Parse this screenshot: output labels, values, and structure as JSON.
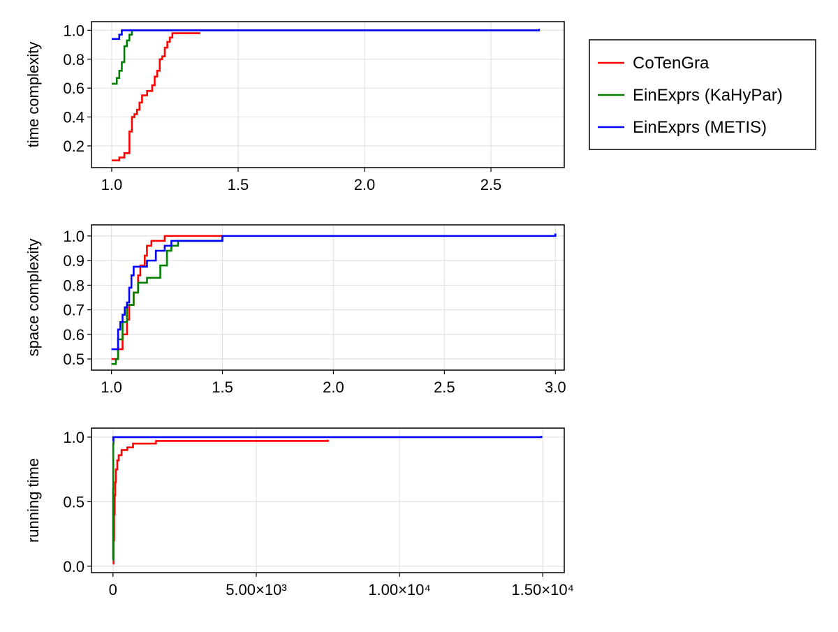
{
  "colors": {
    "CoTenGra": "#ff0000",
    "EinExprs (KaHyPar)": "#008000",
    "EinExprs (METIS)": "#0000ff"
  },
  "legend": {
    "placement": "right-top",
    "entries": [
      "CoTenGra",
      "EinExprs (KaHyPar)",
      "EinExprs (METIS)"
    ]
  },
  "chart_data": [
    {
      "type": "line",
      "step": true,
      "ylabel": "time complexity",
      "xlim": [
        0.92,
        2.79
      ],
      "ylim": [
        0.05,
        1.06
      ],
      "xticks": [
        1.0,
        1.5,
        2.0,
        2.5
      ],
      "xtick_labels": [
        "1.0",
        "1.5",
        "2.0",
        "2.5"
      ],
      "yticks": [
        0.2,
        0.4,
        0.6,
        0.8,
        1.0
      ],
      "ytick_labels": [
        "0.2",
        "0.4",
        "0.6",
        "0.8",
        "1.0"
      ],
      "grid": true,
      "series": [
        {
          "name": "CoTenGra",
          "x": [
            1.0,
            1.03,
            1.05,
            1.07,
            1.08,
            1.09,
            1.1,
            1.11,
            1.12,
            1.14,
            1.16,
            1.17,
            1.18,
            1.19,
            1.2,
            1.21,
            1.22,
            1.23,
            1.24,
            1.26,
            1.35
          ],
          "y": [
            0.1,
            0.12,
            0.15,
            0.3,
            0.4,
            0.42,
            0.45,
            0.5,
            0.55,
            0.58,
            0.62,
            0.68,
            0.72,
            0.8,
            0.82,
            0.88,
            0.92,
            0.95,
            0.98,
            0.98,
            0.98
          ]
        },
        {
          "name": "EinExprs (KaHyPar)",
          "x": [
            1.0,
            1.02,
            1.03,
            1.04,
            1.05,
            1.06,
            1.07,
            1.08
          ],
          "y": [
            0.63,
            0.67,
            0.72,
            0.78,
            0.89,
            0.93,
            0.97,
            1.0
          ]
        },
        {
          "name": "EinExprs (METIS)",
          "x": [
            1.0,
            1.03,
            1.04,
            1.05,
            2.69
          ],
          "y": [
            0.94,
            0.97,
            1.0,
            1.0,
            1.01
          ]
        }
      ]
    },
    {
      "type": "line",
      "step": true,
      "ylabel": "space complexity",
      "xlim": [
        0.91,
        3.04
      ],
      "ylim": [
        0.455,
        1.045
      ],
      "xticks": [
        1.0,
        1.5,
        2.0,
        2.5,
        3.0
      ],
      "xtick_labels": [
        "1.0",
        "1.5",
        "2.0",
        "2.5",
        "3.0"
      ],
      "yticks": [
        0.5,
        0.6,
        0.7,
        0.8,
        0.9,
        1.0
      ],
      "ytick_labels": [
        "0.5",
        "0.6",
        "0.7",
        "0.8",
        "0.9",
        "1.0"
      ],
      "grid": true,
      "series": [
        {
          "name": "CoTenGra",
          "x": [
            1.0,
            1.03,
            1.05,
            1.07,
            1.08,
            1.1,
            1.12,
            1.13,
            1.15,
            1.16,
            1.18,
            1.24,
            1.5
          ],
          "y": [
            0.5,
            0.54,
            0.6,
            0.66,
            0.72,
            0.77,
            0.84,
            0.88,
            0.92,
            0.96,
            0.98,
            1.0,
            1.0
          ]
        },
        {
          "name": "EinExprs (KaHyPar)",
          "x": [
            1.0,
            1.02,
            1.03,
            1.05,
            1.07,
            1.1,
            1.12,
            1.16,
            1.22,
            1.25,
            1.27,
            1.3,
            1.5
          ],
          "y": [
            0.48,
            0.5,
            0.58,
            0.65,
            0.72,
            0.77,
            0.81,
            0.83,
            0.88,
            0.94,
            0.96,
            0.98,
            1.0
          ]
        },
        {
          "name": "EinExprs (METIS)",
          "x": [
            1.0,
            1.03,
            1.04,
            1.05,
            1.06,
            1.07,
            1.08,
            1.09,
            1.1,
            1.12,
            1.16,
            1.2,
            1.22,
            1.24,
            1.27,
            1.5,
            3.0
          ],
          "y": [
            0.54,
            0.62,
            0.65,
            0.68,
            0.71,
            0.73,
            0.79,
            0.84,
            0.875,
            0.875,
            0.9,
            0.94,
            0.94,
            0.96,
            0.98,
            1.0,
            1.01
          ]
        }
      ]
    },
    {
      "type": "line",
      "step": true,
      "ylabel": "running time",
      "xlim": [
        -750,
        15750
      ],
      "ylim": [
        -0.05,
        1.07
      ],
      "xticks": [
        0,
        5000,
        10000,
        15000
      ],
      "xtick_labels": [
        "0",
        "5.00×10³",
        "1.00×10⁴",
        "1.50×10⁴"
      ],
      "yticks": [
        0.0,
        0.5,
        1.0
      ],
      "ytick_labels": [
        "0.0",
        "0.5",
        "1.0"
      ],
      "grid": true,
      "series": [
        {
          "name": "CoTenGra",
          "x": [
            0,
            20,
            40,
            60,
            80,
            100,
            150,
            200,
            300,
            500,
            700,
            1500,
            7500
          ],
          "y": [
            0.02,
            0.2,
            0.4,
            0.55,
            0.65,
            0.75,
            0.82,
            0.86,
            0.9,
            0.92,
            0.95,
            0.97,
            0.98
          ]
        },
        {
          "name": "EinExprs (KaHyPar)",
          "x": [
            0,
            5,
            10,
            20
          ],
          "y": [
            0.05,
            0.6,
            0.95,
            1.0
          ]
        },
        {
          "name": "EinExprs (METIS)",
          "x": [
            0,
            10,
            14950
          ],
          "y": [
            0.97,
            1.0,
            1.01
          ]
        }
      ]
    }
  ]
}
